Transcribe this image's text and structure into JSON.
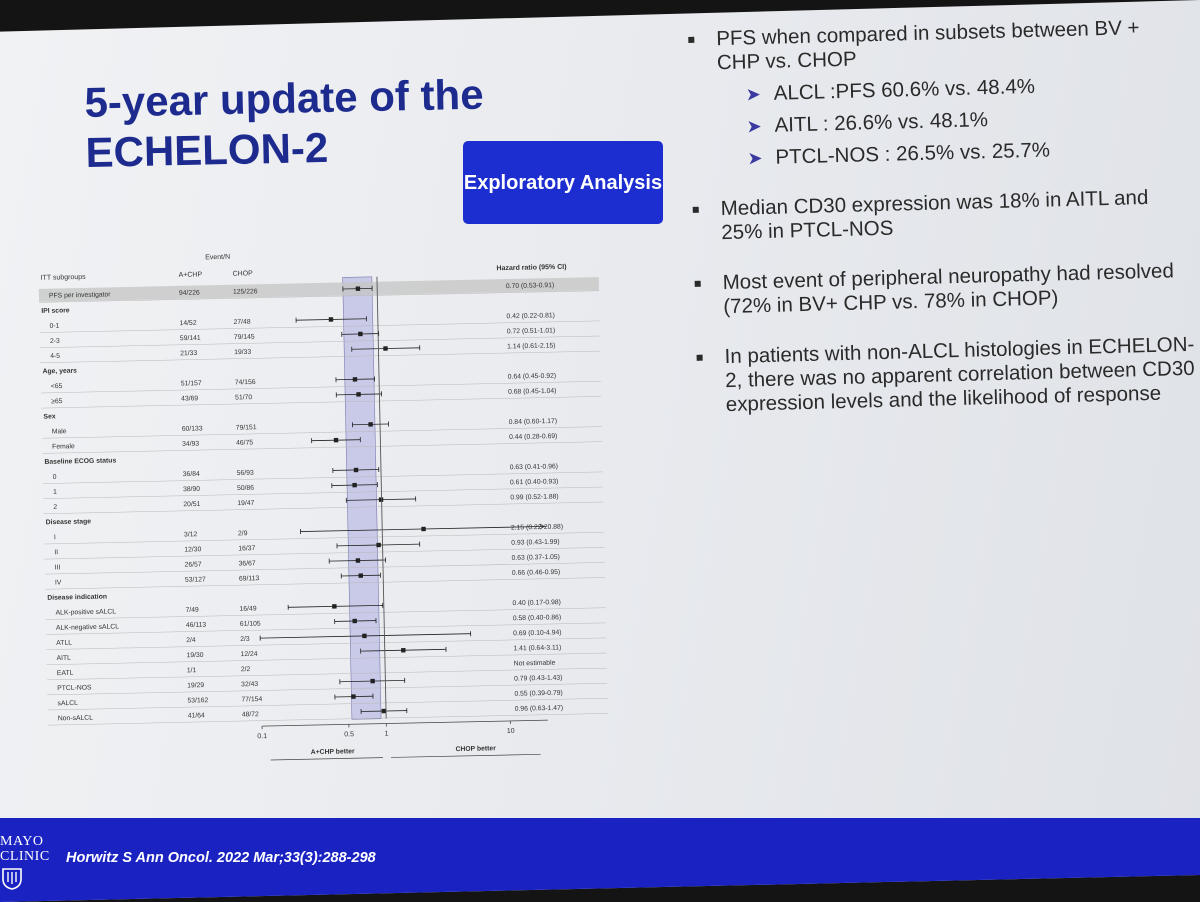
{
  "slide": {
    "title": "5-year update of the ECHELON-2",
    "badge": "Exploratory Analysis"
  },
  "bullets": [
    {
      "text": "PFS when compared in subsets between BV + CHP vs. CHOP",
      "sub": [
        "ALCL :PFS 60.6% vs. 48.4%",
        "AITL :  26.6% vs. 48.1%",
        "PTCL-NOS : 26.5% vs. 25.7%"
      ]
    },
    {
      "text": "Median CD30 expression was 18% in AITL and 25% in PTCL-NOS",
      "sub": []
    },
    {
      "text": "Most event of peripheral neuropathy had resolved (72% in BV+ CHP vs. 78% in CHOP)",
      "sub": []
    },
    {
      "text": "In patients with non-ALCL histologies in ECHELON-2, there was no apparent correlation between CD30 expression levels and the likelihood of response",
      "sub": []
    }
  ],
  "footer": {
    "citation": "Horwitz S Ann Oncol. 2022 Mar;33(3):288-298",
    "logo_line1": "MAYO",
    "logo_line2": "CLINIC"
  },
  "colors": {
    "title": "#1d2b8e",
    "badge_bg": "#1d2ed0",
    "footer_bg": "#1a23c2",
    "ci_band": "#c9c9e8",
    "ci_band_border": "#7a7ab0"
  },
  "chart_data": {
    "type": "forest",
    "headers": {
      "subgroup": "ITT subgroups",
      "events_group": "Event/N",
      "arm1": "A+CHP",
      "arm2": "CHOP",
      "hr": "Hazard ratio (95% CI)"
    },
    "x_scale": "log",
    "xlim": [
      0.1,
      20
    ],
    "x_ticks": [
      {
        "value": 0.1,
        "label": "0.1"
      },
      {
        "value": 0.5,
        "label": "0.5"
      },
      {
        "value": 1,
        "label": "1"
      },
      {
        "value": 10,
        "label": "10"
      }
    ],
    "xlabel_left": "A+CHP better",
    "xlabel_right": "CHOP better",
    "overall_ci_band": [
      0.53,
      0.91
    ],
    "rows": [
      {
        "kind": "data",
        "label": "PFS per investigator",
        "a": "94/226",
        "c": "125/226",
        "hr": 0.7,
        "lo": 0.53,
        "hi": 0.91,
        "text": "0.70 (0.53-0.91)",
        "shaded": true
      },
      {
        "kind": "header",
        "label": "IPI score"
      },
      {
        "kind": "data",
        "label": "0-1",
        "a": "14/52",
        "c": "27/48",
        "hr": 0.42,
        "lo": 0.22,
        "hi": 0.81,
        "text": "0.42 (0.22-0.81)"
      },
      {
        "kind": "data",
        "label": "2-3",
        "a": "59/141",
        "c": "79/145",
        "hr": 0.72,
        "lo": 0.51,
        "hi": 1.01,
        "text": "0.72 (0.51-1.01)"
      },
      {
        "kind": "data",
        "label": "4-5",
        "a": "21/33",
        "c": "19/33",
        "hr": 1.14,
        "lo": 0.61,
        "hi": 2.15,
        "text": "1.14 (0.61-2.15)"
      },
      {
        "kind": "header",
        "label": "Age, years"
      },
      {
        "kind": "data",
        "label": "<65",
        "a": "51/157",
        "c": "74/156",
        "hr": 0.64,
        "lo": 0.45,
        "hi": 0.92,
        "text": "0.64 (0.45-0.92)"
      },
      {
        "kind": "data",
        "label": "≥65",
        "a": "43/69",
        "c": "51/70",
        "hr": 0.68,
        "lo": 0.45,
        "hi": 1.04,
        "text": "0.68 (0.45-1.04)"
      },
      {
        "kind": "header",
        "label": "Sex"
      },
      {
        "kind": "data",
        "label": "Male",
        "a": "60/133",
        "c": "79/151",
        "hr": 0.84,
        "lo": 0.6,
        "hi": 1.17,
        "text": "0.84 (0.60-1.17)"
      },
      {
        "kind": "data",
        "label": "Female",
        "a": "34/93",
        "c": "46/75",
        "hr": 0.44,
        "lo": 0.28,
        "hi": 0.69,
        "text": "0.44 (0.28-0.69)"
      },
      {
        "kind": "header",
        "label": "Baseline ECOG status"
      },
      {
        "kind": "data",
        "label": "0",
        "a": "36/84",
        "c": "56/93",
        "hr": 0.63,
        "lo": 0.41,
        "hi": 0.96,
        "text": "0.63 (0.41-0.96)"
      },
      {
        "kind": "data",
        "label": "1",
        "a": "38/90",
        "c": "50/86",
        "hr": 0.61,
        "lo": 0.4,
        "hi": 0.93,
        "text": "0.61 (0.40-0.93)"
      },
      {
        "kind": "data",
        "label": "2",
        "a": "20/51",
        "c": "19/47",
        "hr": 0.99,
        "lo": 0.52,
        "hi": 1.88,
        "text": "0.99 (0.52-1.88)"
      },
      {
        "kind": "header",
        "label": "Disease stage"
      },
      {
        "kind": "data",
        "label": "I",
        "a": "3/12",
        "c": "2/9",
        "hr": 2.15,
        "lo": 0.22,
        "hi": 20.88,
        "text": "2.15 (0.22-20.88)"
      },
      {
        "kind": "data",
        "label": "II",
        "a": "12/30",
        "c": "16/37",
        "hr": 0.93,
        "lo": 0.43,
        "hi": 1.99,
        "text": "0.93 (0.43-1.99)"
      },
      {
        "kind": "data",
        "label": "III",
        "a": "26/57",
        "c": "36/67",
        "hr": 0.63,
        "lo": 0.37,
        "hi": 1.05,
        "text": "0.63 (0.37-1.05)"
      },
      {
        "kind": "data",
        "label": "IV",
        "a": "53/127",
        "c": "69/113",
        "hr": 0.66,
        "lo": 0.46,
        "hi": 0.95,
        "text": "0.66 (0.46-0.95)"
      },
      {
        "kind": "header",
        "label": "Disease indication"
      },
      {
        "kind": "data",
        "label": "ALK-positive sALCL",
        "a": "7/49",
        "c": "16/49",
        "hr": 0.4,
        "lo": 0.17,
        "hi": 0.98,
        "text": "0.40 (0.17-0.98)"
      },
      {
        "kind": "data",
        "label": "ALK-negative sALCL",
        "a": "46/113",
        "c": "61/105",
        "hr": 0.58,
        "lo": 0.4,
        "hi": 0.86,
        "text": "0.58 (0.40-0.86)"
      },
      {
        "kind": "data",
        "label": "ATLL",
        "a": "2/4",
        "c": "2/3",
        "hr": 0.69,
        "lo": 0.1,
        "hi": 4.94,
        "text": "0.69 (0.10-4.94)"
      },
      {
        "kind": "data",
        "label": "AITL",
        "a": "19/30",
        "c": "12/24",
        "hr": 1.41,
        "lo": 0.64,
        "hi": 3.11,
        "text": "1.41 (0.64-3.11)"
      },
      {
        "kind": "data",
        "label": "EATL",
        "a": "1/1",
        "c": "2/2",
        "hr": null,
        "lo": null,
        "hi": null,
        "text": "Not estimable"
      },
      {
        "kind": "data",
        "label": "PTCL-NOS",
        "a": "19/29",
        "c": "32/43",
        "hr": 0.79,
        "lo": 0.43,
        "hi": 1.43,
        "text": "0.79 (0.43-1.43)"
      },
      {
        "kind": "data",
        "label": "sALCL",
        "a": "53/162",
        "c": "77/154",
        "hr": 0.55,
        "lo": 0.39,
        "hi": 0.79,
        "text": "0.55 (0.39-0.79)"
      },
      {
        "kind": "data",
        "label": "Non-sALCL",
        "a": "41/64",
        "c": "48/72",
        "hr": 0.96,
        "lo": 0.63,
        "hi": 1.47,
        "text": "0.96 (0.63-1.47)"
      }
    ]
  }
}
